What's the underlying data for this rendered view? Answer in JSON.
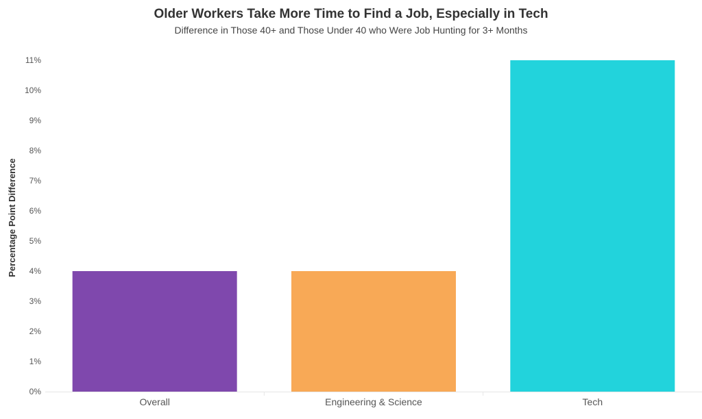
{
  "chart_data": {
    "type": "bar",
    "title": "Older Workers Take More Time to Find a Job, Especially in Tech",
    "subtitle": "Difference in Those 40+ and Those Under 40 who Were Job Hunting for 3+ Months",
    "xlabel": "",
    "ylabel": "Percentage Point Difference",
    "categories": [
      "Overall",
      "Engineering & Science",
      "Tech"
    ],
    "values": [
      4,
      4,
      11
    ],
    "value_unit": "%",
    "ylim": [
      0,
      11
    ],
    "yticks": [
      "0%",
      "1%",
      "2%",
      "3%",
      "4%",
      "5%",
      "6%",
      "7%",
      "8%",
      "9%",
      "10%",
      "11%"
    ],
    "colors": [
      "#7f48ad",
      "#f8a956",
      "#22d3dc"
    ],
    "grid": false,
    "legend": "none"
  }
}
